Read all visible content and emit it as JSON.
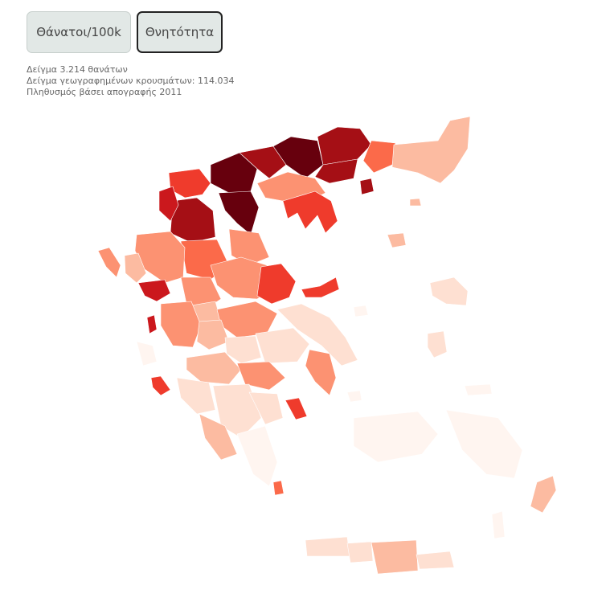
{
  "toolbar": {
    "deaths_per_100k_label": "Θάνατοι/100k",
    "case_fatality_label": "Θνητότητα",
    "active": "case_fatality"
  },
  "notes": {
    "deaths_sample": "Δείγμα 3.214 θανάτων",
    "cases_sample": "Δείγμα γεωγραφημένων κρουσμάτων: 114.034",
    "population": "Πληθυσμός βάσει απογραφής 2011"
  },
  "map": {
    "type": "choropleth",
    "color_scale": [
      "#fff5f0",
      "#fee0d2",
      "#fcbba1",
      "#fc9272",
      "#fb6a4a",
      "#ef3b2c",
      "#cb181d",
      "#a50f15",
      "#67000d"
    ]
  }
}
